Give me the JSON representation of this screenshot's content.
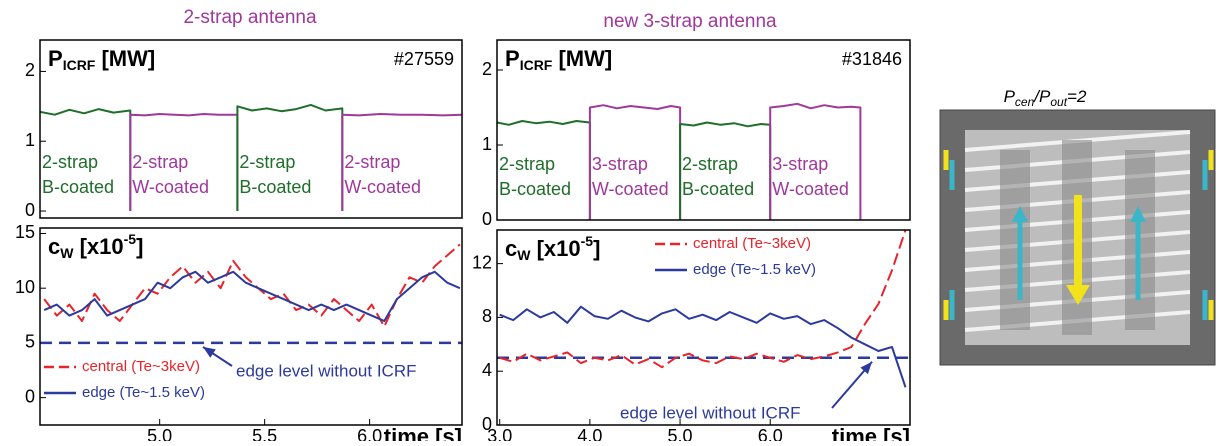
{
  "headings": [
    "2-strap antenna",
    "new 3-strap antenna"
  ],
  "antenna_image": {
    "caption": {
      "p1": "P",
      "sub1": "cen",
      "p2": "/P",
      "sub2": "out",
      "tail": "=2"
    }
  },
  "chart_data": [
    {
      "type": "line",
      "title": {
        "main": "P",
        "sub": "ICRF",
        "rest": " [MW]"
      },
      "annotation": "#27559",
      "xlim": [
        4.43,
        6.44
      ],
      "ylim": [
        -0.1,
        2.45
      ],
      "yticks": [
        0,
        1,
        2
      ],
      "regions": [
        {
          "lines": [
            "2-strap",
            "B-coated"
          ],
          "color": "#1f6e2a"
        },
        {
          "lines": [
            "2-strap",
            "W-coated"
          ],
          "color": "#a0389c"
        },
        {
          "lines": [
            "2-strap",
            "B-coated"
          ],
          "color": "#1f6e2a"
        },
        {
          "lines": [
            "2-strap",
            "W-coated"
          ],
          "color": "#a0389c"
        }
      ],
      "series": [
        {
          "color": "#1f6e2a",
          "x": [
            4.43,
            4.5,
            4.57,
            4.64,
            4.71,
            4.78,
            4.86,
            4.86
          ],
          "values": [
            1.42,
            1.38,
            1.45,
            1.4,
            1.46,
            1.41,
            1.44,
            0
          ]
        },
        {
          "color": "#a0389c",
          "x": [
            4.86,
            4.86,
            4.93,
            5.0,
            5.07,
            5.14,
            5.21,
            5.28,
            5.37,
            5.37
          ],
          "values": [
            0,
            1.38,
            1.37,
            1.39,
            1.38,
            1.37,
            1.39,
            1.38,
            1.38,
            0
          ]
        },
        {
          "color": "#1f6e2a",
          "x": [
            5.37,
            5.37,
            5.44,
            5.51,
            5.58,
            5.65,
            5.72,
            5.79,
            5.87,
            5.87
          ],
          "values": [
            0,
            1.5,
            1.44,
            1.47,
            1.43,
            1.46,
            1.52,
            1.44,
            1.47,
            0
          ]
        },
        {
          "color": "#a0389c",
          "x": [
            5.87,
            5.87,
            5.95,
            6.05,
            6.15,
            6.25,
            6.35,
            6.44
          ],
          "values": [
            0,
            1.38,
            1.37,
            1.39,
            1.38,
            1.38,
            1.37,
            1.38
          ]
        }
      ]
    },
    {
      "type": "line",
      "title": {
        "main": "c",
        "sub": "W",
        "rest": " [x10",
        "sup": "-5",
        "end": "]"
      },
      "xlabel": "time [s]",
      "xlim": [
        4.43,
        6.44
      ],
      "ylim": [
        -2.5,
        15.5
      ],
      "yticks": [
        0,
        5,
        10,
        15
      ],
      "xticks": [
        {
          "value": 5,
          "label": "5.0"
        },
        {
          "value": 5.5,
          "label": "5.5"
        },
        {
          "value": 6,
          "label": "6.0"
        }
      ],
      "legend": "lower left",
      "reference_line": {
        "value": 5,
        "color": "#2b3a9c",
        "text": "edge level without ICRF"
      },
      "x": [
        4.45,
        4.51,
        4.57,
        4.63,
        4.69,
        4.75,
        4.81,
        4.87,
        4.93,
        4.99,
        5.05,
        5.11,
        5.17,
        5.23,
        5.29,
        5.35,
        5.41,
        5.47,
        5.53,
        5.59,
        5.65,
        5.71,
        5.77,
        5.83,
        5.89,
        5.95,
        6.01,
        6.07,
        6.13,
        6.19,
        6.25,
        6.31,
        6.37,
        6.43
      ],
      "series": [
        {
          "name": "central (Te~3keV)",
          "color": "#e8242a",
          "style": "dashed",
          "values": [
            9,
            7.5,
            8.5,
            7,
            9.5,
            8,
            7,
            8.5,
            10,
            9.5,
            11,
            12,
            10.5,
            11.5,
            10,
            12.5,
            11,
            10,
            9,
            9.5,
            8,
            8.5,
            7.5,
            9,
            8,
            7,
            8.5,
            6.5,
            9,
            11,
            10.5,
            12,
            13,
            14
          ]
        },
        {
          "name": "edge (Te~1.5 keV)",
          "color": "#2b3a9c",
          "style": "solid",
          "values": [
            8,
            8.5,
            7.5,
            8,
            9,
            7.5,
            8,
            8.5,
            9,
            10.5,
            10,
            11,
            11.5,
            10.5,
            11,
            11.5,
            10.5,
            10,
            9.5,
            9,
            8.5,
            8,
            8.5,
            8,
            8.5,
            8,
            7.5,
            7,
            9,
            10,
            11,
            11.5,
            10.5,
            10
          ]
        }
      ]
    },
    {
      "type": "line",
      "title": {
        "main": "P",
        "sub": "ICRF",
        "rest": " [MW]"
      },
      "annotation": "#31846",
      "xlim": [
        2.97,
        7.55
      ],
      "ylim": [
        0,
        2.4
      ],
      "yticks": [
        0,
        1,
        2
      ],
      "regions": [
        {
          "lines": [
            "2-strap",
            "B-coated"
          ],
          "color": "#1f6e2a"
        },
        {
          "lines": [
            "3-strap",
            "W-coated"
          ],
          "color": "#a0389c"
        },
        {
          "lines": [
            "2-strap",
            "B-coated"
          ],
          "color": "#1f6e2a"
        },
        {
          "lines": [
            "3-strap",
            "W-coated"
          ],
          "color": "#a0389c"
        }
      ],
      "series": [
        {
          "color": "#1f6e2a",
          "x": [
            2.97,
            3.1,
            3.25,
            3.4,
            3.55,
            3.7,
            3.85,
            4.0,
            4.0
          ],
          "values": [
            1.3,
            1.27,
            1.32,
            1.29,
            1.31,
            1.28,
            1.32,
            1.3,
            0
          ]
        },
        {
          "color": "#a0389c",
          "x": [
            4.0,
            4.0,
            4.15,
            4.3,
            4.45,
            4.6,
            4.75,
            4.9,
            5.0,
            5.0
          ],
          "values": [
            0,
            1.5,
            1.53,
            1.49,
            1.52,
            1.5,
            1.48,
            1.52,
            1.5,
            0
          ]
        },
        {
          "color": "#1f6e2a",
          "x": [
            5.0,
            5.0,
            5.15,
            5.3,
            5.45,
            5.6,
            5.75,
            5.9,
            6.0,
            6.0
          ],
          "values": [
            0,
            1.28,
            1.26,
            1.3,
            1.27,
            1.29,
            1.25,
            1.28,
            1.27,
            0
          ]
        },
        {
          "color": "#a0389c",
          "x": [
            6.0,
            6.0,
            6.15,
            6.3,
            6.45,
            6.6,
            6.75,
            6.9,
            7.0,
            7.0
          ],
          "values": [
            0,
            1.5,
            1.52,
            1.55,
            1.49,
            1.53,
            1.5,
            1.51,
            1.5,
            0
          ]
        }
      ]
    },
    {
      "type": "line",
      "title": {
        "main": "c",
        "sub": "W",
        "rest": " [x10",
        "sup": "-5",
        "end": "]"
      },
      "xlabel": "time [s]",
      "xlim": [
        2.97,
        7.55
      ],
      "ylim": [
        0,
        14.5
      ],
      "yticks": [
        0,
        4,
        8,
        12
      ],
      "xticks": [
        {
          "value": 3,
          "label": "3.0"
        },
        {
          "value": 4,
          "label": "4.0"
        },
        {
          "value": 5,
          "label": "5.0"
        },
        {
          "value": 6,
          "label": "6.0"
        }
      ],
      "legend": "upper right",
      "reference_line": {
        "value": 5,
        "color": "#2b3a9c",
        "text": "edge level without ICRF"
      },
      "x": [
        3.0,
        3.15,
        3.3,
        3.45,
        3.6,
        3.75,
        3.9,
        4.05,
        4.2,
        4.35,
        4.5,
        4.65,
        4.8,
        4.95,
        5.1,
        5.25,
        5.4,
        5.55,
        5.7,
        5.85,
        6.0,
        6.15,
        6.3,
        6.45,
        6.6,
        6.75,
        6.9,
        7.05,
        7.2,
        7.35,
        7.5
      ],
      "series": [
        {
          "name": "central (Te~3keV)",
          "color": "#e8242a",
          "style": "dashed",
          "values": [
            5.0,
            4.7,
            5.3,
            4.8,
            5.1,
            5.4,
            4.6,
            5.0,
            4.8,
            5.2,
            4.5,
            4.9,
            4.3,
            5.0,
            5.3,
            4.8,
            4.6,
            5.1,
            4.9,
            5.3,
            5.0,
            4.7,
            5.2,
            4.9,
            5.1,
            5.4,
            5.8,
            7.5,
            9.0,
            11.5,
            14.5
          ]
        },
        {
          "name": "edge (Te~1.5 keV)",
          "color": "#2b3a9c",
          "style": "solid",
          "values": [
            8.2,
            7.8,
            8.6,
            8.0,
            8.4,
            7.6,
            8.8,
            8.1,
            7.9,
            8.5,
            8.0,
            7.7,
            8.3,
            8.6,
            7.9,
            8.2,
            7.8,
            8.4,
            8.0,
            7.6,
            8.3,
            7.9,
            8.1,
            7.5,
            7.8,
            7.2,
            6.5,
            6.0,
            5.5,
            5.8,
            2.8
          ]
        }
      ]
    }
  ]
}
